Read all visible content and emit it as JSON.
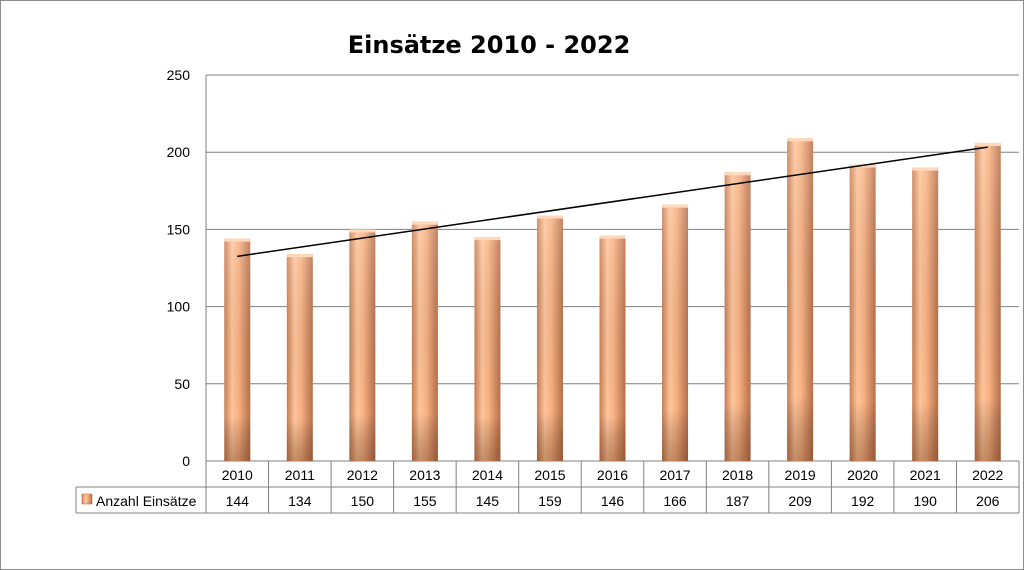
{
  "chart_data": {
    "type": "bar",
    "title": "Einsätze 2010 - 2022",
    "categories": [
      "2010",
      "2011",
      "2012",
      "2013",
      "2014",
      "2015",
      "2016",
      "2017",
      "2018",
      "2019",
      "2020",
      "2021",
      "2022"
    ],
    "series": [
      {
        "name": "Anzahl Einsätze",
        "values": [
          144,
          134,
          150,
          155,
          145,
          159,
          146,
          166,
          187,
          209,
          192,
          190,
          206
        ],
        "color": "#f0a06e"
      }
    ],
    "trendline": {
      "type": "linear",
      "color": "#000000"
    },
    "ylim": [
      0,
      250
    ],
    "yticks": [
      0,
      50,
      100,
      150,
      200,
      250
    ],
    "grid": true,
    "data_table": true,
    "xlabel": "",
    "ylabel": ""
  },
  "colors": {
    "bar": "#f0a06e",
    "grid": "#808080",
    "border": "#8c8c8c"
  }
}
